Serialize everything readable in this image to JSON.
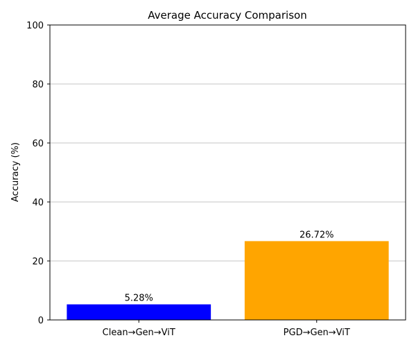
{
  "chart_data": {
    "type": "bar",
    "title": "Average Accuracy Comparison",
    "xlabel": "",
    "ylabel": "Accuracy (%)",
    "categories": [
      "Clean→Gen→ViT",
      "PGD→Gen→ViT"
    ],
    "values": [
      5.28,
      26.72
    ],
    "value_labels": [
      "5.28%",
      "26.72%"
    ],
    "colors": [
      "#0000ff",
      "#ffa500"
    ],
    "ylim": [
      0,
      100
    ],
    "yticks": [
      0,
      20,
      40,
      60,
      80,
      100
    ],
    "grid": "y-axis",
    "legend": "none"
  }
}
